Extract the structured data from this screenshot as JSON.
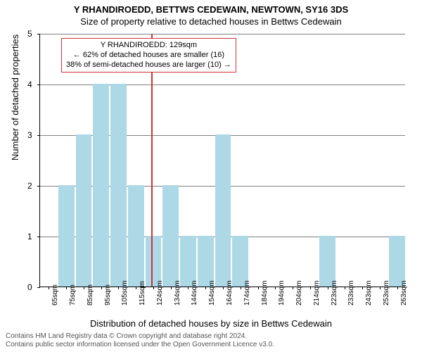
{
  "title_main": "Y RHANDIROEDD, BETTWS CEDEWAIN, NEWTOWN, SY16 3DS",
  "title_sub": "Size of property relative to detached houses in Bettws Cedewain",
  "ylabel": "Number of detached properties",
  "xlabel": "Distribution of detached houses by size in Bettws Cedewain",
  "footer1": "Contains HM Land Registry data © Crown copyright and database right 2024.",
  "footer2": "Contains public sector information licensed under the Open Government Licence v3.0.",
  "chart": {
    "type": "bar",
    "ylim": [
      0,
      5
    ],
    "yticks": [
      0,
      1,
      2,
      3,
      4,
      5
    ],
    "bar_color": "#add8e6",
    "grid_color": "#808080",
    "ref_color": "#cc3333",
    "background_color": "#ffffff",
    "bar_gap_ratio": 0.08,
    "ref_position": 6.4,
    "categories": [
      "65sqm",
      "75sqm",
      "85sqm",
      "95sqm",
      "105sqm",
      "115sqm",
      "124sqm",
      "134sqm",
      "144sqm",
      "154sqm",
      "164sqm",
      "174sqm",
      "184sqm",
      "194sqm",
      "204sqm",
      "214sqm",
      "223sqm",
      "233sqm",
      "243sqm",
      "253sqm",
      "263sqm"
    ],
    "values": [
      0,
      2,
      3,
      4,
      4,
      2,
      1,
      2,
      1,
      1,
      3,
      1,
      0,
      0,
      0,
      0,
      1,
      0,
      0,
      0,
      1
    ]
  },
  "annotation": {
    "line1": "Y RHANDIROEDD: 129sqm",
    "line2": "← 62% of detached houses are smaller (16)",
    "line3": "38% of semi-detached houses are larger (10) →"
  }
}
